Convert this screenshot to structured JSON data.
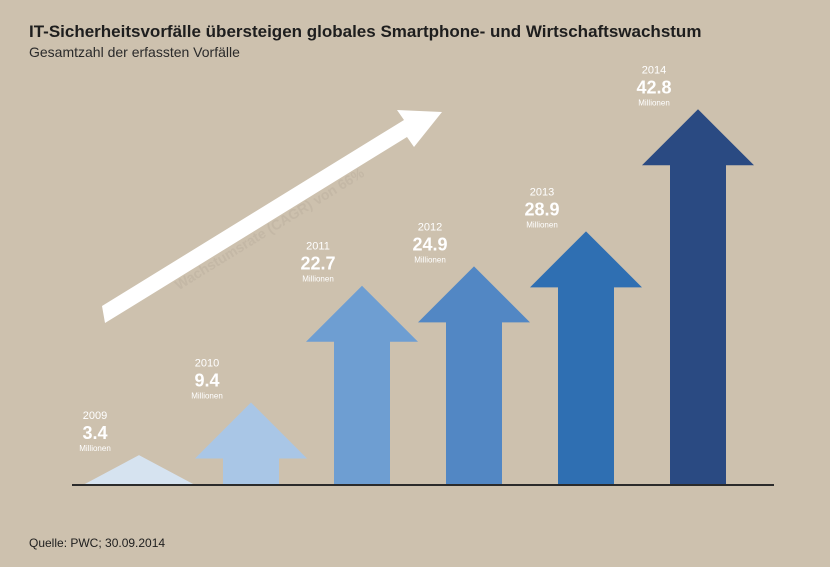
{
  "title": "IT-Sicherheitsvorfälle übersteigen globales Smartphone- und Wirtschaftswachstum",
  "subtitle": "Gesamtzahl der erfassten Vorfälle",
  "source": "Quelle: PWC; 30.09.2014",
  "chart_data": {
    "type": "bar",
    "categories": [
      "2009",
      "2010",
      "2011",
      "2012",
      "2013",
      "2014"
    ],
    "values": [
      3.4,
      9.4,
      22.7,
      24.9,
      28.9,
      42.8
    ],
    "value_labels": [
      "3.4",
      "9.4",
      "22.7",
      "24.9",
      "28.9",
      "42.8"
    ],
    "unit_label": "Millionen",
    "colors": [
      "#d6e3f0",
      "#a9c6e6",
      "#6e9ed2",
      "#5287c4",
      "#2f6fb2",
      "#2a4a82"
    ],
    "annotation": "Wachstumsrate (CAGR) von 66%",
    "ylim": [
      0,
      45
    ],
    "grid": false,
    "legend": "none"
  }
}
